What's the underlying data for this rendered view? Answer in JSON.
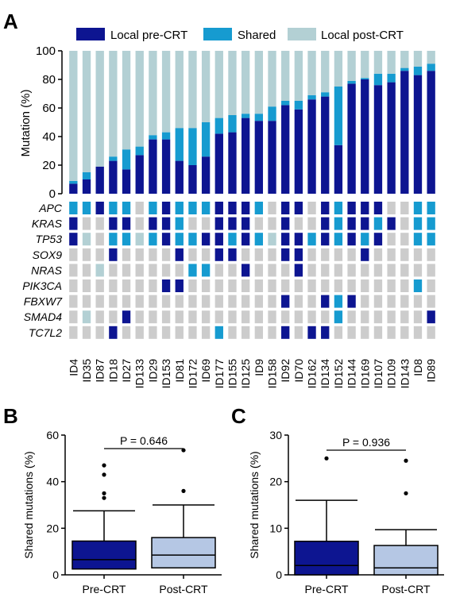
{
  "colors": {
    "pre": "#0d1591",
    "shared": "#169bd0",
    "post": "#b3d0d4",
    "grid_empty": "#cccccc",
    "box_pre": "#0d1591",
    "box_post": "#b5c7e4"
  },
  "chart_data": [
    {
      "panel": "A",
      "type": "bar",
      "stacked": true,
      "ylabel": "Mutation (%)",
      "ylim": [
        0,
        100
      ],
      "yticks": [
        0,
        20,
        40,
        60,
        80,
        100
      ],
      "legend": {
        "position": "top",
        "entries": [
          "Local pre-CRT",
          "Shared",
          "Local post-CRT"
        ]
      },
      "categories": [
        "ID4",
        "ID35",
        "ID87",
        "ID18",
        "ID27",
        "ID133",
        "ID29",
        "ID153",
        "ID81",
        "ID172",
        "ID69",
        "ID177",
        "ID155",
        "ID125",
        "ID9",
        "ID158",
        "ID92",
        "ID70",
        "ID162",
        "ID134",
        "ID152",
        "ID144",
        "ID169",
        "ID107",
        "ID109",
        "ID143",
        "ID8",
        "ID89"
      ],
      "series": [
        {
          "name": "Local pre-CRT",
          "values": [
            7,
            10,
            19,
            23,
            17,
            27,
            38,
            38,
            23,
            20,
            26,
            42,
            43,
            53,
            51,
            51,
            62,
            59,
            66,
            68,
            34,
            77,
            80,
            76,
            78,
            86,
            83,
            86
          ]
        },
        {
          "name": "Shared",
          "values": [
            2,
            5,
            0,
            3,
            14,
            6,
            3,
            5,
            23,
            26,
            24,
            11,
            12,
            3,
            5,
            10,
            3,
            6,
            3,
            3,
            41,
            2,
            1,
            8,
            6,
            2,
            6,
            5
          ]
        },
        {
          "name": "Local post-CRT",
          "values": [
            91,
            85,
            81,
            74,
            69,
            67,
            59,
            57,
            54,
            54,
            50,
            47,
            45,
            44,
            44,
            39,
            35,
            35,
            31,
            29,
            25,
            21,
            19,
            16,
            16,
            12,
            11,
            9
          ]
        }
      ],
      "genes": [
        "APC",
        "KRAS",
        "TP53",
        "SOX9",
        "NRAS",
        "PIK3CA",
        "FBXW7",
        "SMAD4",
        "TC7L2"
      ],
      "gene_matrix_legend": {
        "1": "Local pre-CRT",
        "2": "Shared",
        "3": "Local post-CRT",
        "0": "none"
      },
      "gene_matrix": [
        [
          2,
          2,
          1,
          2,
          2,
          0,
          2,
          1,
          2,
          2,
          2,
          1,
          1,
          1,
          2,
          0,
          1,
          1,
          0,
          1,
          2,
          1,
          1,
          1,
          0,
          0,
          2,
          2
        ],
        [
          1,
          0,
          0,
          1,
          1,
          0,
          1,
          1,
          2,
          0,
          0,
          1,
          1,
          1,
          0,
          0,
          1,
          0,
          0,
          1,
          2,
          1,
          1,
          2,
          1,
          0,
          2,
          2
        ],
        [
          1,
          3,
          0,
          2,
          2,
          3,
          2,
          1,
          2,
          2,
          1,
          1,
          2,
          1,
          2,
          3,
          1,
          1,
          2,
          1,
          2,
          1,
          2,
          1,
          0,
          0,
          2,
          2
        ],
        [
          0,
          0,
          0,
          1,
          0,
          0,
          0,
          0,
          1,
          0,
          0,
          1,
          1,
          0,
          0,
          0,
          1,
          1,
          0,
          0,
          0,
          0,
          1,
          0,
          0,
          0,
          0,
          0
        ],
        [
          0,
          0,
          3,
          0,
          0,
          0,
          0,
          0,
          0,
          2,
          2,
          0,
          0,
          1,
          0,
          0,
          0,
          1,
          0,
          0,
          0,
          0,
          0,
          0,
          0,
          0,
          0,
          0
        ],
        [
          0,
          0,
          0,
          0,
          0,
          0,
          0,
          1,
          1,
          0,
          0,
          0,
          0,
          0,
          0,
          0,
          0,
          0,
          0,
          0,
          0,
          0,
          0,
          0,
          0,
          0,
          2,
          0
        ],
        [
          0,
          0,
          0,
          0,
          0,
          0,
          0,
          0,
          0,
          0,
          0,
          0,
          0,
          0,
          0,
          0,
          1,
          0,
          0,
          1,
          2,
          1,
          0,
          0,
          0,
          0,
          0,
          0
        ],
        [
          0,
          3,
          0,
          0,
          1,
          0,
          0,
          0,
          0,
          0,
          0,
          0,
          0,
          0,
          0,
          0,
          0,
          0,
          0,
          0,
          2,
          0,
          0,
          0,
          0,
          0,
          0,
          1
        ],
        [
          0,
          0,
          0,
          1,
          0,
          0,
          0,
          0,
          0,
          0,
          0,
          2,
          0,
          0,
          0,
          0,
          1,
          0,
          1,
          1,
          0,
          0,
          0,
          0,
          0,
          0,
          0,
          0
        ]
      ]
    },
    {
      "panel": "B",
      "type": "box",
      "ylabel": "Shared mutations (%)",
      "ylim": [
        0,
        60
      ],
      "yticks": [
        0,
        20,
        40,
        60
      ],
      "categories": [
        "Pre-CRT",
        "Post-CRT"
      ],
      "boxes": [
        {
          "name": "Pre-CRT",
          "whisker_low": 0,
          "q1": 2.5,
          "median": 6.5,
          "q3": 14.5,
          "whisker_high": 27.5,
          "outliers": [
            33,
            35,
            43,
            47
          ]
        },
        {
          "name": "Post-CRT",
          "whisker_low": 0,
          "q1": 3,
          "median": 8.5,
          "q3": 16,
          "whisker_high": 30,
          "outliers": [
            36,
            53.5
          ]
        }
      ],
      "annotation": "P = 0.646"
    },
    {
      "panel": "C",
      "type": "box",
      "ylabel": "Shared mutations (%)",
      "ylim": [
        0,
        30
      ],
      "yticks": [
        0,
        10,
        20,
        30
      ],
      "categories": [
        "Pre-CRT",
        "Post-CRT"
      ],
      "boxes": [
        {
          "name": "Pre-CRT",
          "whisker_low": 0,
          "q1": 0,
          "median": 2,
          "q3": 7.2,
          "whisker_high": 16,
          "outliers": [
            25
          ]
        },
        {
          "name": "Post-CRT",
          "whisker_low": 0,
          "q1": 0,
          "median": 1.5,
          "q3": 6.3,
          "whisker_high": 9.7,
          "outliers": [
            17.5,
            24.5
          ]
        }
      ],
      "annotation": "P = 0.936"
    }
  ],
  "labels": {
    "panel_a": "A",
    "panel_b": "B",
    "panel_c": "C"
  }
}
